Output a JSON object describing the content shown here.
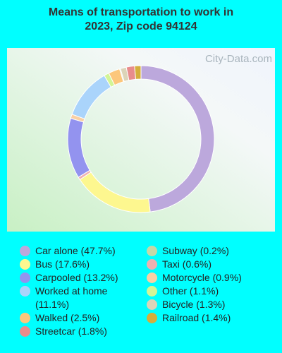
{
  "chart_data": {
    "type": "donut",
    "title": [
      "Means of transportation to work in",
      "2023, Zip code 94124"
    ],
    "watermark": "City-Data.com",
    "series": [
      {
        "name": "Car alone (47.7%)",
        "value": 47.7,
        "color": "#bca8dc"
      },
      {
        "name": "Bus (17.6%)",
        "value": 17.6,
        "color": "#fdf78f"
      },
      {
        "name": "Taxi (0.6%)",
        "value": 0.6,
        "color": "#f0b0b0"
      },
      {
        "name": "Carpooled (13.2%)",
        "value": 13.2,
        "color": "#9393ef"
      },
      {
        "name": "Motorcycle (0.9%)",
        "value": 0.9,
        "color": "#f9d0a4"
      },
      {
        "name": "Worked at home (11.1%)",
        "value": 11.1,
        "color": "#aad4fb"
      },
      {
        "name": "Other (1.1%)",
        "value": 1.1,
        "color": "#d2f596"
      },
      {
        "name": "Walked (2.5%)",
        "value": 2.5,
        "color": "#fcc77c"
      },
      {
        "name": "Subway (0.2%)",
        "value": 0.2,
        "color": "#c5d8a7"
      },
      {
        "name": "Bicycle (1.3%)",
        "value": 1.3,
        "color": "#dcd4b8"
      },
      {
        "name": "Streetcar (1.8%)",
        "value": 1.8,
        "color": "#e88c8c"
      },
      {
        "name": "Railroad (1.4%)",
        "value": 1.4,
        "color": "#d4ae3c"
      }
    ]
  }
}
